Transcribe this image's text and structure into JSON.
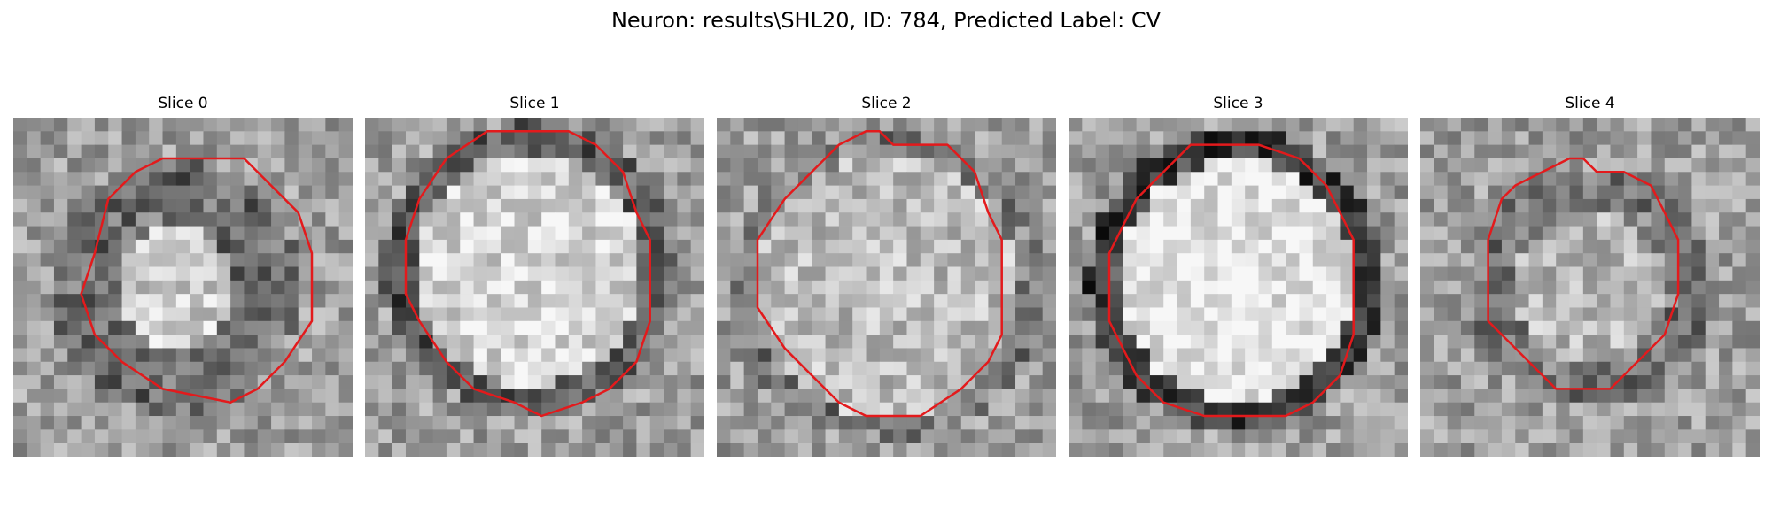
{
  "figure": {
    "title": "Neuron: results\\SHL20, ID: 784, Predicted Label: CV"
  },
  "contour_color": "#e31a1c",
  "panels": [
    {
      "title": "Slice 0"
    },
    {
      "title": "Slice 1"
    },
    {
      "title": "Slice 2"
    },
    {
      "title": "Slice 3"
    },
    {
      "title": "Slice 4"
    }
  ]
}
